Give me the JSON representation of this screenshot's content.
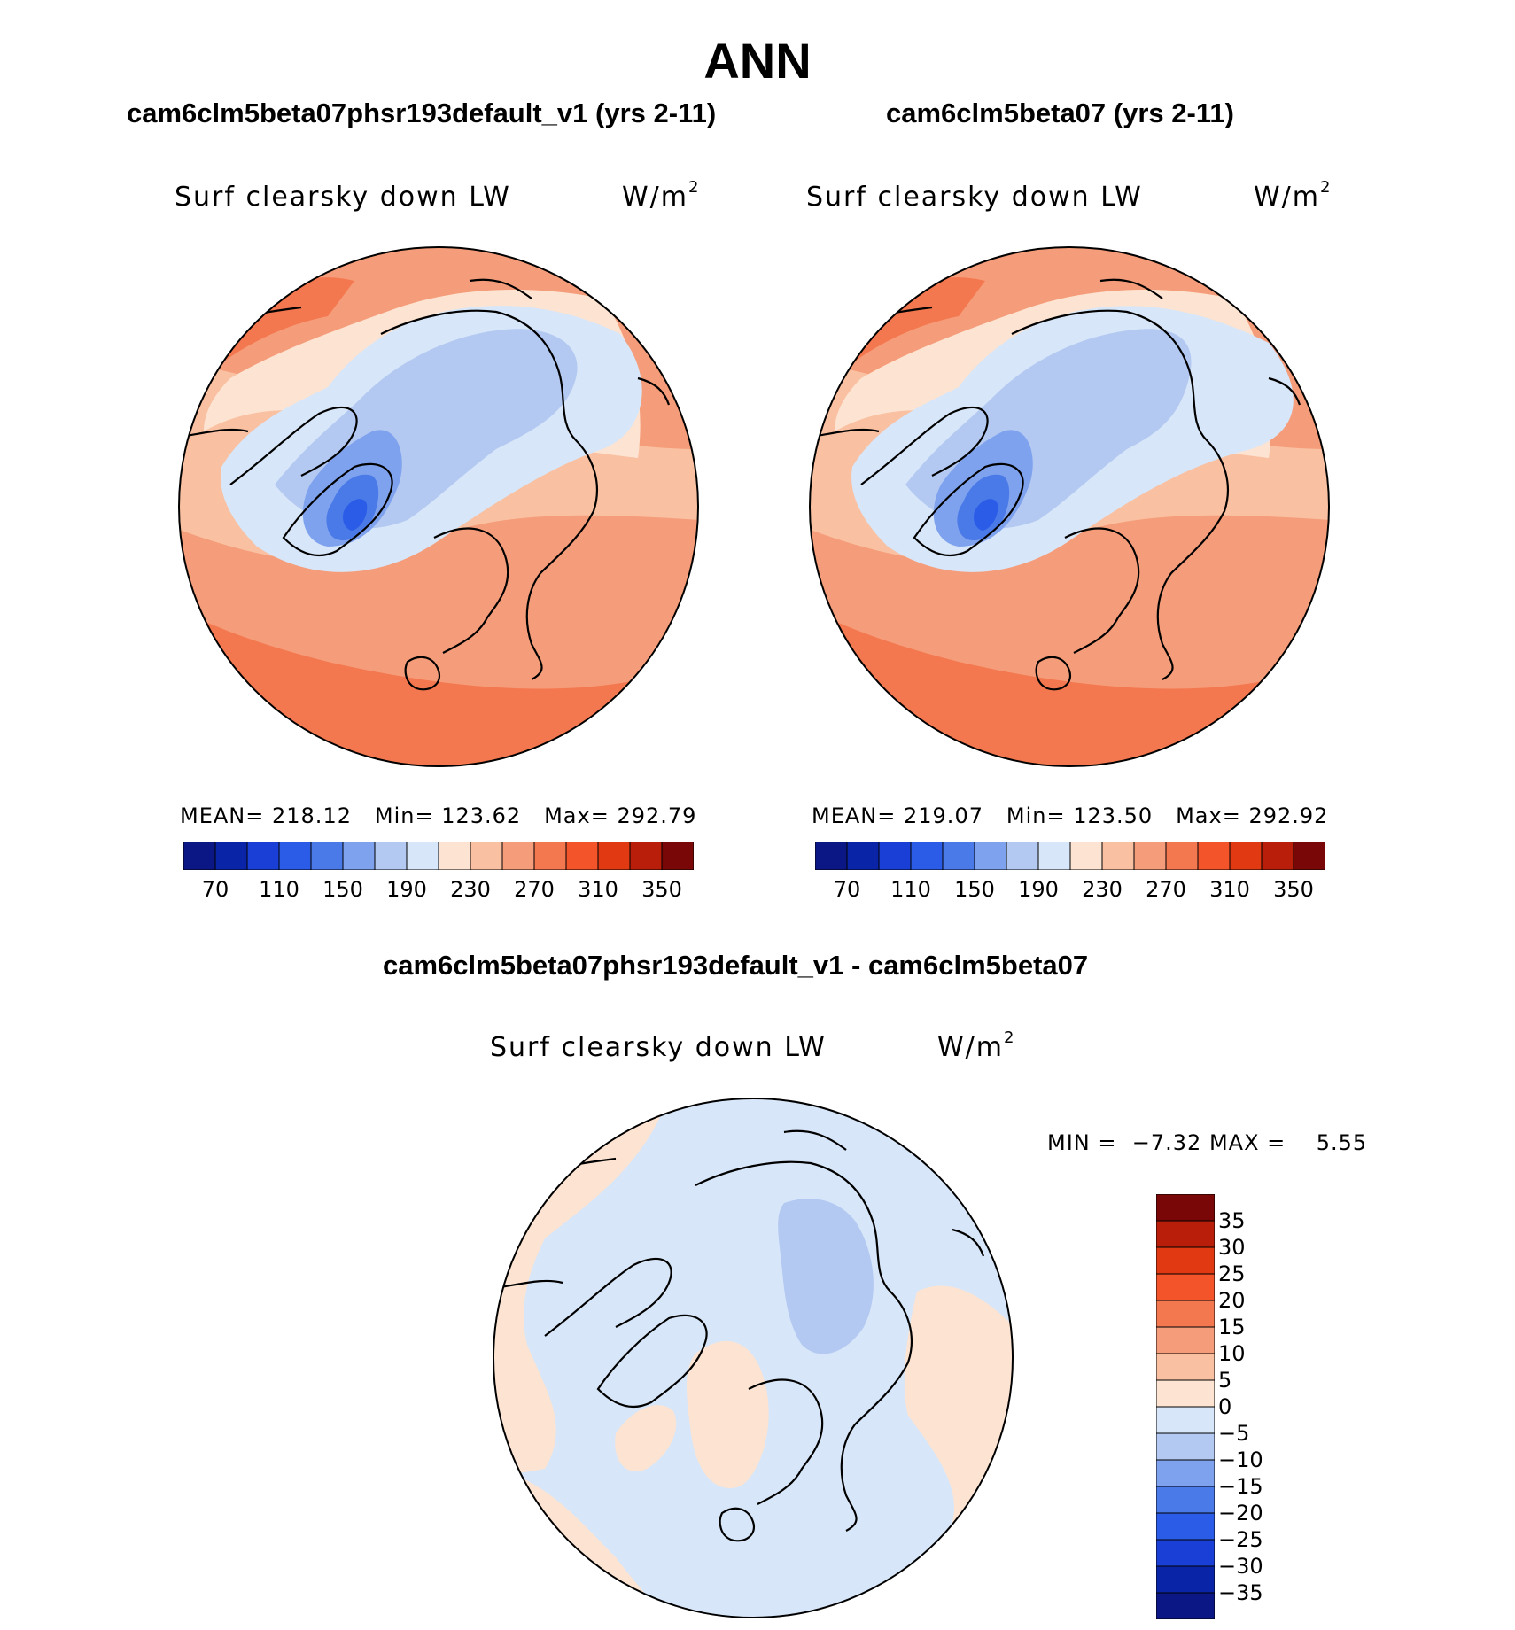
{
  "figure_title": "ANN",
  "panels": [
    {
      "title": "cam6clm5beta07phsr193default_v1 (yrs 2-11)",
      "variable": "Surf clearsky down LW",
      "units_base": "W/m",
      "units_exp": "2",
      "stats": {
        "mean_label": "MEAN=",
        "mean": "218.12",
        "min_label": "Min=",
        "min": "123.62",
        "max_label": "Max=",
        "max": "292.79"
      }
    },
    {
      "title": "cam6clm5beta07 (yrs 2-11)",
      "variable": "Surf clearsky down LW",
      "units_base": "W/m",
      "units_exp": "2",
      "stats": {
        "mean_label": "MEAN=",
        "mean": "219.07",
        "min_label": "Min=",
        "min": "123.50",
        "max_label": "Max=",
        "max": "292.92"
      }
    }
  ],
  "colorbar_abs": {
    "colors": [
      "#0b1785",
      "#0a24a8",
      "#1a3fd6",
      "#2a5ce8",
      "#4a7ae8",
      "#7fa2ee",
      "#b3c9f2",
      "#d7e6f8",
      "#fde4d2",
      "#f9c1a2",
      "#f59d7a",
      "#f4784f",
      "#f4542a",
      "#e13a12",
      "#b81e0a",
      "#7a0707"
    ],
    "tick_labels": [
      "70",
      "110",
      "150",
      "190",
      "230",
      "270",
      "310",
      "350"
    ]
  },
  "difference": {
    "title": "cam6clm5beta07phsr193default_v1 - cam6clm5beta07",
    "variable": "Surf clearsky down LW",
    "units_base": "W/m",
    "units_exp": "2",
    "min_label": "MIN =",
    "min": "−7.32",
    "max_label": "MAX =",
    "max": "5.55"
  },
  "colorbar_diff": {
    "colors": [
      "#0b1785",
      "#0a24a8",
      "#1a3fd6",
      "#2a5ce8",
      "#4a7ae8",
      "#7fa2ee",
      "#b3c9f2",
      "#d7e6f8",
      "#fde4d2",
      "#f9c1a2",
      "#f59d7a",
      "#f4784f",
      "#f4542a",
      "#e13a12",
      "#b81e0a",
      "#7a0707"
    ],
    "tick_labels": [
      "35",
      "30",
      "25",
      "20",
      "15",
      "10",
      "5",
      "0",
      "−5",
      "−10",
      "−15",
      "−20",
      "−25",
      "−30",
      "−35"
    ]
  }
}
